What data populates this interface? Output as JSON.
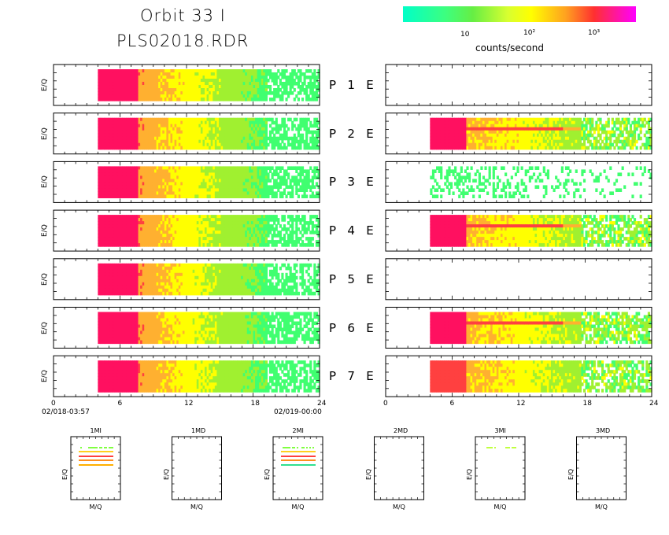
{
  "header": {
    "title_line1": "Orbit 33 I",
    "title_line2": "PLS02018.RDR"
  },
  "colorbar": {
    "tick_labels": [
      "10",
      "10²",
      "10³"
    ],
    "label": "counts/second",
    "scale": "log",
    "colors": [
      "#00ffc8",
      "#66ee44",
      "#ffff00",
      "#ffa020",
      "#ff3030",
      "#ff00ff"
    ]
  },
  "chart_data": {
    "type": "heatmap",
    "y_axis_label": "E/Q",
    "x_ticks": [
      "0",
      "6",
      "12",
      "18",
      "24"
    ],
    "x_range": [
      0,
      24
    ],
    "time_labels": [
      "02/018-03:57",
      "02/019-00:00"
    ],
    "panels": [
      {
        "label": "P 1 E",
        "p_has_data": true,
        "e_has_data": false
      },
      {
        "label": "P 2 E",
        "p_has_data": true,
        "e_has_data": true
      },
      {
        "label": "P 3 E",
        "p_has_data": true,
        "e_has_data": true
      },
      {
        "label": "P 4 E",
        "p_has_data": true,
        "e_has_data": true
      },
      {
        "label": "P 5 E",
        "p_has_data": true,
        "e_has_data": false
      },
      {
        "label": "P 6 E",
        "p_has_data": true,
        "e_has_data": true
      },
      {
        "label": "P 7 E",
        "p_has_data": true,
        "e_has_data": true
      }
    ],
    "data_start_hour": 4,
    "data_end_hour": 24,
    "mass_panels": {
      "x_label": "M/Q",
      "y_label": "E/Q",
      "titles": [
        "1MI",
        "1MD",
        "2MI",
        "2MD",
        "3MI",
        "3MD"
      ]
    }
  }
}
